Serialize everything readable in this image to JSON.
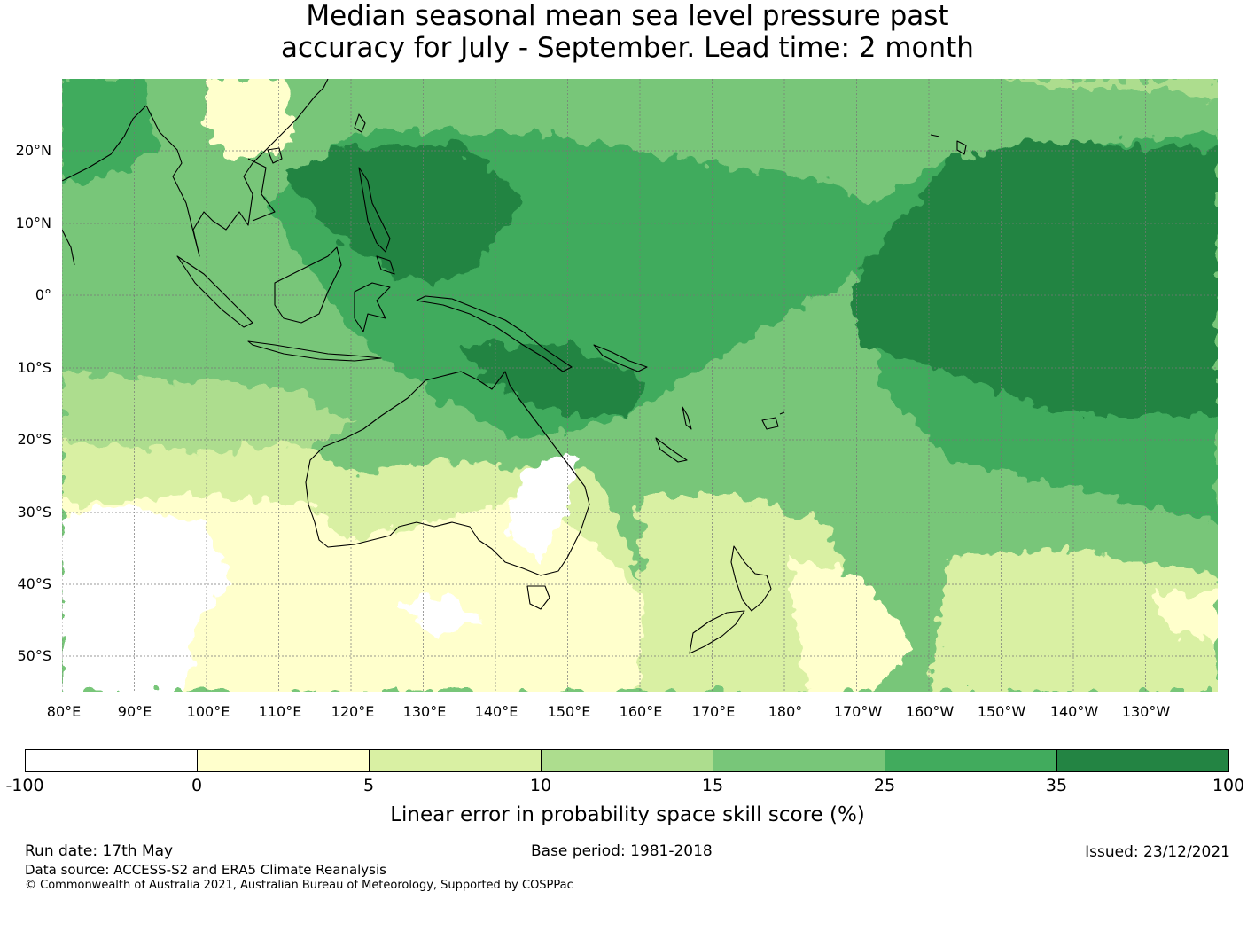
{
  "title": {
    "line1": "Median seasonal mean sea level pressure past",
    "line2": "accuracy for July - September. Lead time: 2 month"
  },
  "map": {
    "region": "Western and Central Pacific",
    "lat_labels": [
      "20°N",
      "10°N",
      "0°",
      "10°S",
      "20°S",
      "30°S",
      "40°S",
      "50°S"
    ],
    "lon_labels": [
      "80°E",
      "90°E",
      "100°E",
      "110°E",
      "120°E",
      "130°E",
      "140°E",
      "150°E",
      "160°E",
      "170°E",
      "180°",
      "170°W",
      "160°W",
      "150°W",
      "140°W",
      "130°W"
    ],
    "gridlines": true,
    "coastlines": true
  },
  "colorbar": {
    "ticks": [
      "-100",
      "0",
      "5",
      "10",
      "15",
      "25",
      "35",
      "100"
    ],
    "colors": [
      "#ffffff",
      "#ffffcc",
      "#d9f0a3",
      "#addd8e",
      "#78c679",
      "#41ab5d",
      "#238443"
    ],
    "label": "Linear error in probability space skill score (%)"
  },
  "footer": {
    "run_date": "Run date: 17th May",
    "base_period": "Base period: 1981-2018",
    "issued": "Issued: 23/12/2021",
    "data_source": "Data source: ACCESS-S2 and ERA5 Climate Reanalysis",
    "copyright": "© Commonwealth of Australia 2021, Australian Bureau of Meteorology, Supported by COSPPac"
  }
}
